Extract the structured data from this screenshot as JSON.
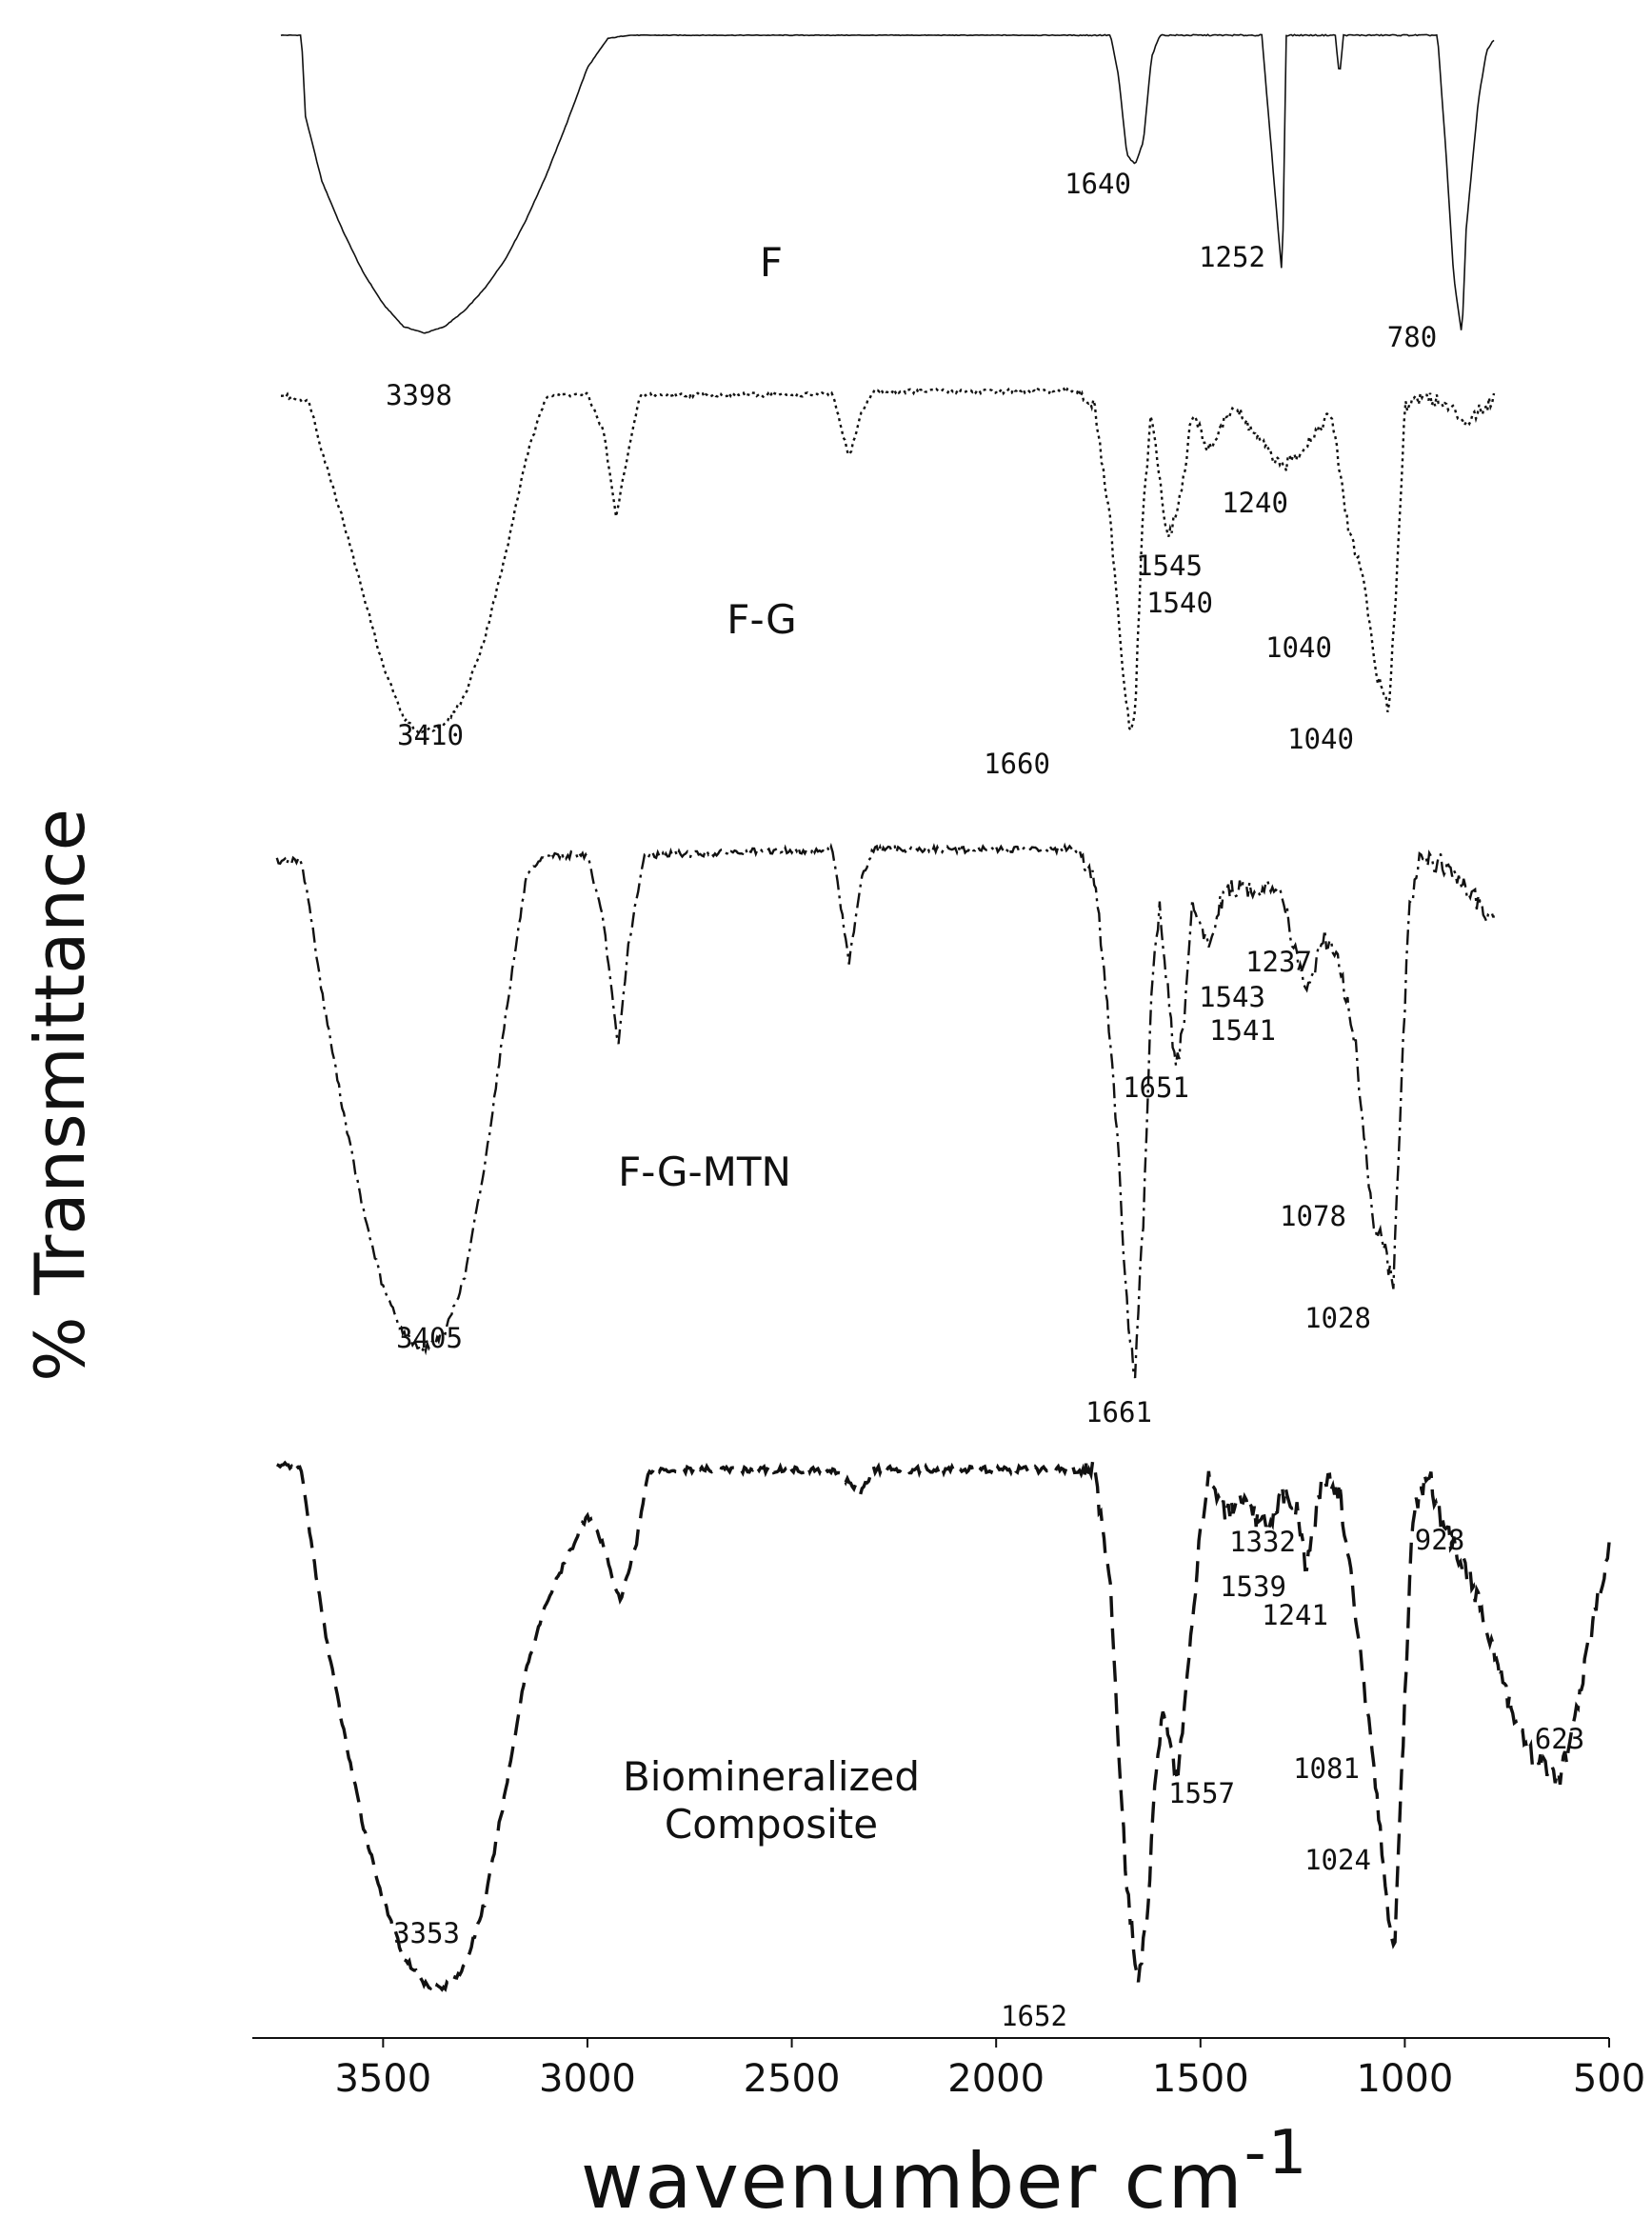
{
  "chart_data": {
    "type": "line",
    "xlabel": "wavenumber cm",
    "xlabel_superscript": "-1",
    "ylabel": "% Transmittance",
    "x_ticks": [
      3500,
      3000,
      2500,
      2000,
      1500,
      1000,
      500
    ],
    "x_tick_labels": [
      "3500",
      "3000",
      "2500",
      "2000",
      "1500",
      "1000",
      "500"
    ],
    "xlim": [
      3820,
      500
    ],
    "x_reversed": true,
    "grid": false,
    "series": [
      {
        "name": "F",
        "style": "solid",
        "range": [
          3750,
          780
        ],
        "baseline": 0.95,
        "points": [
          [
            3750,
            0.95
          ],
          [
            3700,
            0.95
          ],
          [
            3690,
            0.7
          ],
          [
            3650,
            0.5
          ],
          [
            3600,
            0.35
          ],
          [
            3550,
            0.22
          ],
          [
            3500,
            0.12
          ],
          [
            3450,
            0.05
          ],
          [
            3398,
            0.03
          ],
          [
            3350,
            0.05
          ],
          [
            3300,
            0.1
          ],
          [
            3250,
            0.17
          ],
          [
            3200,
            0.26
          ],
          [
            3150,
            0.38
          ],
          [
            3100,
            0.52
          ],
          [
            3050,
            0.68
          ],
          [
            3000,
            0.85
          ],
          [
            2950,
            0.94
          ],
          [
            2900,
            0.95
          ],
          [
            1720,
            0.95
          ],
          [
            1700,
            0.82
          ],
          [
            1680,
            0.58
          ],
          [
            1660,
            0.55
          ],
          [
            1640,
            0.62
          ],
          [
            1620,
            0.88
          ],
          [
            1600,
            0.95
          ],
          [
            1350,
            0.95
          ],
          [
            1320,
            0.5
          ],
          [
            1300,
            0.2
          ],
          [
            1290,
            0.95
          ],
          [
            1170,
            0.95
          ],
          [
            1160,
            0.82
          ],
          [
            1150,
            0.95
          ],
          [
            920,
            0.95
          ],
          [
            900,
            0.6
          ],
          [
            880,
            0.2
          ],
          [
            860,
            0.02
          ],
          [
            850,
            0.35
          ],
          [
            820,
            0.75
          ],
          [
            800,
            0.9
          ],
          [
            780,
            0.94
          ]
        ],
        "peaks": [
          3398,
          1640,
          1252,
          780
        ],
        "peak_labels": [
          "3398",
          "1640",
          "1252",
          "780"
        ]
      },
      {
        "name": "F-G",
        "style": "dotted",
        "range": [
          3750,
          780
        ],
        "baseline": 0.96,
        "points": [
          [
            3750,
            0.95
          ],
          [
            3680,
            0.93
          ],
          [
            3650,
            0.8
          ],
          [
            3600,
            0.62
          ],
          [
            3550,
            0.42
          ],
          [
            3500,
            0.22
          ],
          [
            3450,
            0.08
          ],
          [
            3410,
            0.04
          ],
          [
            3350,
            0.06
          ],
          [
            3300,
            0.14
          ],
          [
            3250,
            0.3
          ],
          [
            3200,
            0.52
          ],
          [
            3150,
            0.78
          ],
          [
            3100,
            0.95
          ],
          [
            3000,
            0.95
          ],
          [
            2960,
            0.85
          ],
          [
            2930,
            0.62
          ],
          [
            2900,
            0.8
          ],
          [
            2870,
            0.95
          ],
          [
            2400,
            0.95
          ],
          [
            2360,
            0.78
          ],
          [
            2330,
            0.9
          ],
          [
            2300,
            0.96
          ],
          [
            1800,
            0.96
          ],
          [
            1760,
            0.92
          ],
          [
            1720,
            0.6
          ],
          [
            1690,
            0.2
          ],
          [
            1670,
            0.03
          ],
          [
            1660,
            0.1
          ],
          [
            1640,
            0.65
          ],
          [
            1620,
            0.9
          ],
          [
            1580,
            0.55
          ],
          [
            1545,
            0.7
          ],
          [
            1520,
            0.9
          ],
          [
            1480,
            0.8
          ],
          [
            1420,
            0.92
          ],
          [
            1300,
            0.75
          ],
          [
            1240,
            0.82
          ],
          [
            1180,
            0.9
          ],
          [
            1140,
            0.6
          ],
          [
            1100,
            0.45
          ],
          [
            1070,
            0.2
          ],
          [
            1040,
            0.1
          ],
          [
            1020,
            0.45
          ],
          [
            1000,
            0.92
          ],
          [
            950,
            0.95
          ],
          [
            900,
            0.92
          ],
          [
            850,
            0.88
          ],
          [
            800,
            0.92
          ],
          [
            780,
            0.95
          ]
        ],
        "peaks": [
          3410,
          1660,
          1545,
          1540,
          1240,
          1040,
          1040
        ],
        "peak_labels": [
          "3410",
          "1660",
          "1545",
          "1540",
          "1240",
          "1040",
          "1040"
        ]
      },
      {
        "name": "F-G-MTN",
        "style": "dashdot",
        "range": [
          3760,
          780
        ],
        "baseline": 0.95,
        "points": [
          [
            3760,
            0.93
          ],
          [
            3700,
            0.93
          ],
          [
            3680,
            0.85
          ],
          [
            3650,
            0.7
          ],
          [
            3600,
            0.5
          ],
          [
            3550,
            0.32
          ],
          [
            3500,
            0.18
          ],
          [
            3450,
            0.1
          ],
          [
            3405,
            0.07
          ],
          [
            3350,
            0.1
          ],
          [
            3300,
            0.2
          ],
          [
            3250,
            0.4
          ],
          [
            3200,
            0.66
          ],
          [
            3150,
            0.9
          ],
          [
            3100,
            0.94
          ],
          [
            3000,
            0.94
          ],
          [
            2960,
            0.82
          ],
          [
            2925,
            0.6
          ],
          [
            2900,
            0.78
          ],
          [
            2860,
            0.94
          ],
          [
            2400,
            0.95
          ],
          [
            2360,
            0.75
          ],
          [
            2330,
            0.9
          ],
          [
            2300,
            0.95
          ],
          [
            1800,
            0.95
          ],
          [
            1760,
            0.9
          ],
          [
            1730,
            0.7
          ],
          [
            1700,
            0.4
          ],
          [
            1680,
            0.15
          ],
          [
            1661,
            0.02
          ],
          [
            1640,
            0.3
          ],
          [
            1620,
            0.7
          ],
          [
            1600,
            0.85
          ],
          [
            1580,
            0.7
          ],
          [
            1560,
            0.56
          ],
          [
            1540,
            0.65
          ],
          [
            1520,
            0.85
          ],
          [
            1480,
            0.78
          ],
          [
            1440,
            0.88
          ],
          [
            1300,
            0.88
          ],
          [
            1260,
            0.74
          ],
          [
            1237,
            0.7
          ],
          [
            1200,
            0.8
          ],
          [
            1160,
            0.75
          ],
          [
            1120,
            0.6
          ],
          [
            1090,
            0.38
          ],
          [
            1078,
            0.3
          ],
          [
            1050,
            0.25
          ],
          [
            1028,
            0.18
          ],
          [
            1010,
            0.5
          ],
          [
            990,
            0.85
          ],
          [
            960,
            0.94
          ],
          [
            900,
            0.92
          ],
          [
            850,
            0.88
          ],
          [
            800,
            0.84
          ],
          [
            780,
            0.82
          ]
        ],
        "peaks": [
          3405,
          1661,
          1651,
          1543,
          1541,
          1237,
          1078,
          1028
        ],
        "peak_labels": [
          "3405",
          "1661",
          "1651",
          "1543",
          "1541",
          "1237",
          "1078",
          "1028"
        ]
      },
      {
        "name": "Biomineralized Composite",
        "style": "dashed",
        "range": [
          3760,
          500
        ],
        "baseline": 0.97,
        "points": [
          [
            3760,
            0.97
          ],
          [
            3700,
            0.96
          ],
          [
            3680,
            0.85
          ],
          [
            3650,
            0.7
          ],
          [
            3600,
            0.5
          ],
          [
            3550,
            0.32
          ],
          [
            3500,
            0.18
          ],
          [
            3450,
            0.08
          ],
          [
            3400,
            0.03
          ],
          [
            3353,
            0.02
          ],
          [
            3300,
            0.06
          ],
          [
            3250,
            0.18
          ],
          [
            3200,
            0.38
          ],
          [
            3150,
            0.6
          ],
          [
            3100,
            0.72
          ],
          [
            3050,
            0.8
          ],
          [
            3000,
            0.88
          ],
          [
            2960,
            0.82
          ],
          [
            2920,
            0.72
          ],
          [
            2880,
            0.83
          ],
          [
            2850,
            0.96
          ],
          [
            2700,
            0.96
          ],
          [
            2400,
            0.96
          ],
          [
            2330,
            0.92
          ],
          [
            2300,
            0.96
          ],
          [
            1800,
            0.96
          ],
          [
            1760,
            0.96
          ],
          [
            1720,
            0.75
          ],
          [
            1700,
            0.45
          ],
          [
            1680,
            0.2
          ],
          [
            1652,
            0.03
          ],
          [
            1630,
            0.15
          ],
          [
            1610,
            0.42
          ],
          [
            1590,
            0.52
          ],
          [
            1570,
            0.45
          ],
          [
            1557,
            0.4
          ],
          [
            1530,
            0.6
          ],
          [
            1500,
            0.85
          ],
          [
            1480,
            0.95
          ],
          [
            1440,
            0.88
          ],
          [
            1400,
            0.9
          ],
          [
            1332,
            0.85
          ],
          [
            1300,
            0.92
          ],
          [
            1260,
            0.88
          ],
          [
            1241,
            0.78
          ],
          [
            1200,
            0.95
          ],
          [
            1160,
            0.92
          ],
          [
            1120,
            0.7
          ],
          [
            1081,
            0.45
          ],
          [
            1060,
            0.3
          ],
          [
            1040,
            0.15
          ],
          [
            1024,
            0.1
          ],
          [
            1000,
            0.55
          ],
          [
            980,
            0.88
          ],
          [
            960,
            0.92
          ],
          [
            940,
            0.96
          ],
          [
            928,
            0.9
          ],
          [
            900,
            0.85
          ],
          [
            850,
            0.78
          ],
          [
            800,
            0.68
          ],
          [
            750,
            0.55
          ],
          [
            700,
            0.45
          ],
          [
            650,
            0.42
          ],
          [
            623,
            0.4
          ],
          [
            600,
            0.45
          ],
          [
            560,
            0.6
          ],
          [
            530,
            0.72
          ],
          [
            500,
            0.82
          ]
        ],
        "peaks": [
          3353,
          1652,
          1557,
          1539,
          1332,
          1241,
          1081,
          1024,
          928,
          623
        ],
        "peak_labels": [
          "3353",
          "1652",
          "1557",
          "1539",
          "1332",
          "1241",
          "1081",
          "1024",
          "928",
          "623"
        ]
      }
    ]
  }
}
